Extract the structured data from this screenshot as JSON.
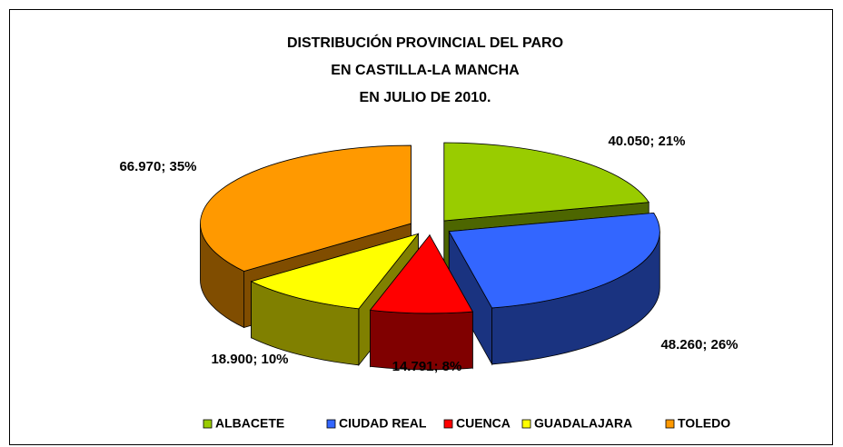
{
  "chart_data": {
    "type": "pie3d",
    "title": [
      "DISTRIBUCIÓN PROVINCIAL DEL PARO",
      "EN CASTILLA-LA MANCHA",
      "EN JULIO DE 2010."
    ],
    "categories": [
      "ALBACETE",
      "CIUDAD REAL",
      "CUENCA",
      "GUADALAJARA",
      "TOLEDO"
    ],
    "values": [
      40050,
      48260,
      14791,
      18900,
      66970
    ],
    "value_labels": [
      "40.050; 21%",
      "48.260; 26%",
      "14.791; 8%",
      "18.900; 10%",
      "66.970; 35%"
    ],
    "colors": [
      "#99cc00",
      "#3366ff",
      "#ff0000",
      "#ffff00",
      "#ff9900"
    ],
    "legend": "bottom"
  }
}
